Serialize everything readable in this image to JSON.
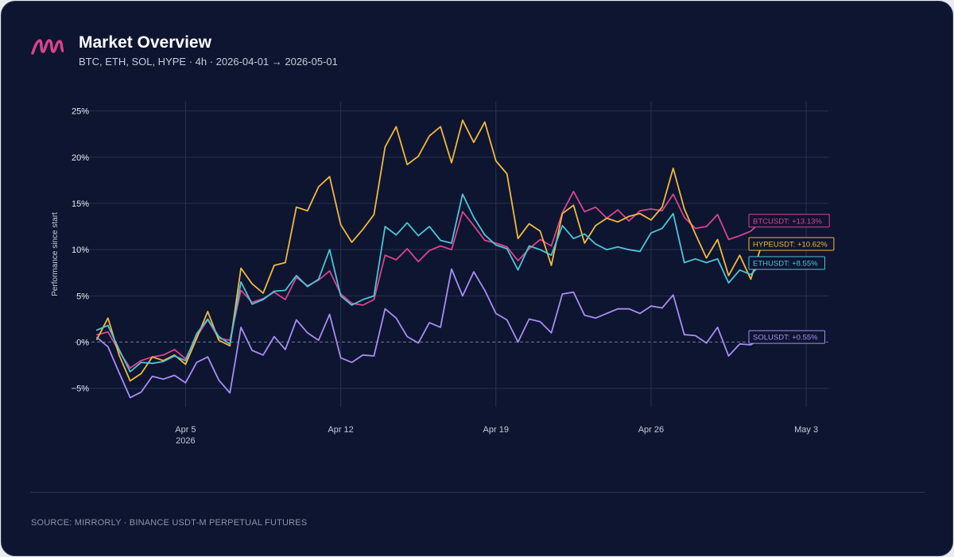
{
  "header": {
    "title": "Market Overview",
    "subtitle": "BTC, ETH, SOL, HYPE · 4h · 2026-04-01 → 2026-05-01"
  },
  "footer": {
    "source": "SOURCE: MIRRORLY · BINANCE USDT-M PERPETUAL FUTURES"
  },
  "colors": {
    "background": "#0d1530",
    "grid": "#283150",
    "brand": "#d9428f"
  },
  "chart_data": {
    "type": "line",
    "title": "",
    "xlabel": "",
    "ylabel": "Performance since start",
    "x_range": [
      "2026-03-31",
      "2026-05-04"
    ],
    "ylim": [
      -7,
      26
    ],
    "y_ticks": [
      -5,
      0,
      5,
      10,
      15,
      20,
      25
    ],
    "y_tick_labels": [
      "−5%",
      "0%",
      "5%",
      "10%",
      "15%",
      "20%",
      "25%"
    ],
    "x_ticks": [
      {
        "date": "2026-04-05",
        "label": "Apr 5",
        "sublabel": "2026"
      },
      {
        "date": "2026-04-12",
        "label": "Apr 12",
        "sublabel": ""
      },
      {
        "date": "2026-04-19",
        "label": "Apr 19",
        "sublabel": ""
      },
      {
        "date": "2026-04-26",
        "label": "Apr 26",
        "sublabel": ""
      },
      {
        "date": "2026-05-03",
        "label": "May 3",
        "sublabel": ""
      }
    ],
    "grid": true,
    "zero_line": "dashed",
    "legend": "end-labels right",
    "series": [
      {
        "name": "BTCUSDT",
        "color": "#d9448f",
        "end_label": "BTCUSDT: +13.13%",
        "points": [
          [
            "2026-04-01 00:00",
            0.8
          ],
          [
            "2026-04-01 12:00",
            1.1
          ],
          [
            "2026-04-02 00:00",
            -1.0
          ],
          [
            "2026-04-02 12:00",
            -2.8
          ],
          [
            "2026-04-03 00:00",
            -2.0
          ],
          [
            "2026-04-03 12:00",
            -1.6
          ],
          [
            "2026-04-04 00:00",
            -1.4
          ],
          [
            "2026-04-04 12:00",
            -0.8
          ],
          [
            "2026-04-05 00:00",
            -1.8
          ],
          [
            "2026-04-05 12:00",
            0.6
          ],
          [
            "2026-04-06 00:00",
            2.4
          ],
          [
            "2026-04-06 12:00",
            0.4
          ],
          [
            "2026-04-07 00:00",
            0.2
          ],
          [
            "2026-04-07 12:00",
            5.6
          ],
          [
            "2026-04-08 00:00",
            4.3
          ],
          [
            "2026-04-08 12:00",
            4.7
          ],
          [
            "2026-04-09 00:00",
            5.4
          ],
          [
            "2026-04-09 12:00",
            4.6
          ],
          [
            "2026-04-10 00:00",
            7.0
          ],
          [
            "2026-04-10 12:00",
            6.1
          ],
          [
            "2026-04-11 00:00",
            6.7
          ],
          [
            "2026-04-11 12:00",
            7.7
          ],
          [
            "2026-04-12 00:00",
            5.2
          ],
          [
            "2026-04-12 12:00",
            4.2
          ],
          [
            "2026-04-13 00:00",
            4.0
          ],
          [
            "2026-04-13 12:00",
            4.6
          ],
          [
            "2026-04-14 00:00",
            9.4
          ],
          [
            "2026-04-14 12:00",
            8.9
          ],
          [
            "2026-04-15 00:00",
            10.1
          ],
          [
            "2026-04-15 12:00",
            8.7
          ],
          [
            "2026-04-16 00:00",
            9.9
          ],
          [
            "2026-04-16 12:00",
            10.4
          ],
          [
            "2026-04-17 00:00",
            10.0
          ],
          [
            "2026-04-17 12:00",
            14.1
          ],
          [
            "2026-04-18 00:00",
            12.6
          ],
          [
            "2026-04-18 12:00",
            11.0
          ],
          [
            "2026-04-19 00:00",
            10.7
          ],
          [
            "2026-04-19 12:00",
            10.3
          ],
          [
            "2026-04-20 00:00",
            8.8
          ],
          [
            "2026-04-20 12:00",
            10.1
          ],
          [
            "2026-04-21 00:00",
            11.1
          ],
          [
            "2026-04-21 12:00",
            10.4
          ],
          [
            "2026-04-22 00:00",
            14.0
          ],
          [
            "2026-04-22 12:00",
            16.3
          ],
          [
            "2026-04-23 00:00",
            14.1
          ],
          [
            "2026-04-23 12:00",
            14.6
          ],
          [
            "2026-04-24 00:00",
            13.4
          ],
          [
            "2026-04-24 12:00",
            14.3
          ],
          [
            "2026-04-25 00:00",
            13.1
          ],
          [
            "2026-04-25 12:00",
            14.2
          ],
          [
            "2026-04-26 00:00",
            14.4
          ],
          [
            "2026-04-26 12:00",
            14.2
          ],
          [
            "2026-04-27 00:00",
            16.0
          ],
          [
            "2026-04-27 12:00",
            13.5
          ],
          [
            "2026-04-28 00:00",
            12.3
          ],
          [
            "2026-04-28 12:00",
            12.5
          ],
          [
            "2026-04-29 00:00",
            13.8
          ],
          [
            "2026-04-29 12:00",
            11.1
          ],
          [
            "2026-04-30 00:00",
            11.5
          ],
          [
            "2026-04-30 12:00",
            12.0
          ],
          [
            "2026-05-01 00:00",
            13.13
          ]
        ]
      },
      {
        "name": "HYPEUSDT",
        "color": "#f2b83d",
        "end_label": "HYPEUSDT: +10.62%",
        "points": [
          [
            "2026-04-01 00:00",
            0.3
          ],
          [
            "2026-04-01 12:00",
            2.6
          ],
          [
            "2026-04-02 00:00",
            -1.4
          ],
          [
            "2026-04-02 12:00",
            -4.2
          ],
          [
            "2026-04-03 00:00",
            -3.4
          ],
          [
            "2026-04-03 12:00",
            -1.6
          ],
          [
            "2026-04-04 00:00",
            -2.0
          ],
          [
            "2026-04-04 12:00",
            -1.4
          ],
          [
            "2026-04-05 00:00",
            -2.4
          ],
          [
            "2026-04-05 12:00",
            0.4
          ],
          [
            "2026-04-06 00:00",
            3.3
          ],
          [
            "2026-04-06 12:00",
            0.2
          ],
          [
            "2026-04-07 00:00",
            -0.4
          ],
          [
            "2026-04-07 12:00",
            8.0
          ],
          [
            "2026-04-08 00:00",
            6.3
          ],
          [
            "2026-04-08 12:00",
            5.3
          ],
          [
            "2026-04-09 00:00",
            8.3
          ],
          [
            "2026-04-09 12:00",
            8.6
          ],
          [
            "2026-04-10 00:00",
            14.6
          ],
          [
            "2026-04-10 12:00",
            14.2
          ],
          [
            "2026-04-11 00:00",
            16.8
          ],
          [
            "2026-04-11 12:00",
            17.9
          ],
          [
            "2026-04-12 00:00",
            12.7
          ],
          [
            "2026-04-12 12:00",
            10.8
          ],
          [
            "2026-04-13 00:00",
            12.2
          ],
          [
            "2026-04-13 12:00",
            13.8
          ],
          [
            "2026-04-14 00:00",
            21.1
          ],
          [
            "2026-04-14 12:00",
            23.3
          ],
          [
            "2026-04-15 00:00",
            19.2
          ],
          [
            "2026-04-15 12:00",
            20.1
          ],
          [
            "2026-04-16 00:00",
            22.3
          ],
          [
            "2026-04-16 12:00",
            23.3
          ],
          [
            "2026-04-17 00:00",
            19.4
          ],
          [
            "2026-04-17 12:00",
            24.0
          ],
          [
            "2026-04-18 00:00",
            21.6
          ],
          [
            "2026-04-18 12:00",
            23.8
          ],
          [
            "2026-04-19 00:00",
            19.6
          ],
          [
            "2026-04-19 12:00",
            18.2
          ],
          [
            "2026-04-20 00:00",
            11.2
          ],
          [
            "2026-04-20 12:00",
            12.8
          ],
          [
            "2026-04-21 00:00",
            12.0
          ],
          [
            "2026-04-21 12:00",
            8.3
          ],
          [
            "2026-04-22 00:00",
            13.9
          ],
          [
            "2026-04-22 12:00",
            14.8
          ],
          [
            "2026-04-23 00:00",
            10.7
          ],
          [
            "2026-04-23 12:00",
            12.6
          ],
          [
            "2026-04-24 00:00",
            13.4
          ],
          [
            "2026-04-24 12:00",
            13.0
          ],
          [
            "2026-04-25 00:00",
            13.6
          ],
          [
            "2026-04-25 12:00",
            13.9
          ],
          [
            "2026-04-26 00:00",
            13.2
          ],
          [
            "2026-04-26 12:00",
            14.6
          ],
          [
            "2026-04-27 00:00",
            18.8
          ],
          [
            "2026-04-27 12:00",
            14.4
          ],
          [
            "2026-04-28 00:00",
            11.7
          ],
          [
            "2026-04-28 12:00",
            9.1
          ],
          [
            "2026-04-29 00:00",
            11.1
          ],
          [
            "2026-04-29 12:00",
            7.2
          ],
          [
            "2026-04-30 00:00",
            9.4
          ],
          [
            "2026-04-30 12:00",
            6.8
          ],
          [
            "2026-05-01 00:00",
            10.62
          ]
        ]
      },
      {
        "name": "ETHUSDT",
        "color": "#4cc5d6",
        "end_label": "ETHUSDT: +8.55%",
        "points": [
          [
            "2026-04-01 00:00",
            1.3
          ],
          [
            "2026-04-01 12:00",
            1.8
          ],
          [
            "2026-04-02 00:00",
            -0.8
          ],
          [
            "2026-04-02 12:00",
            -3.2
          ],
          [
            "2026-04-03 00:00",
            -2.2
          ],
          [
            "2026-04-03 12:00",
            -2.3
          ],
          [
            "2026-04-04 00:00",
            -2.1
          ],
          [
            "2026-04-04 12:00",
            -1.5
          ],
          [
            "2026-04-05 00:00",
            -2.0
          ],
          [
            "2026-04-05 12:00",
            0.9
          ],
          [
            "2026-04-06 00:00",
            2.5
          ],
          [
            "2026-04-06 12:00",
            0.6
          ],
          [
            "2026-04-07 00:00",
            -0.2
          ],
          [
            "2026-04-07 12:00",
            6.5
          ],
          [
            "2026-04-08 00:00",
            4.1
          ],
          [
            "2026-04-08 12:00",
            4.6
          ],
          [
            "2026-04-09 00:00",
            5.5
          ],
          [
            "2026-04-09 12:00",
            5.6
          ],
          [
            "2026-04-10 00:00",
            7.2
          ],
          [
            "2026-04-10 12:00",
            6.0
          ],
          [
            "2026-04-11 00:00",
            6.8
          ],
          [
            "2026-04-11 12:00",
            10.0
          ],
          [
            "2026-04-12 00:00",
            5.0
          ],
          [
            "2026-04-12 12:00",
            4.0
          ],
          [
            "2026-04-13 00:00",
            4.6
          ],
          [
            "2026-04-13 12:00",
            5.0
          ],
          [
            "2026-04-14 00:00",
            12.5
          ],
          [
            "2026-04-14 12:00",
            11.6
          ],
          [
            "2026-04-15 00:00",
            12.9
          ],
          [
            "2026-04-15 12:00",
            11.5
          ],
          [
            "2026-04-16 00:00",
            12.5
          ],
          [
            "2026-04-16 12:00",
            11.0
          ],
          [
            "2026-04-17 00:00",
            10.7
          ],
          [
            "2026-04-17 12:00",
            16.0
          ],
          [
            "2026-04-18 00:00",
            13.5
          ],
          [
            "2026-04-18 12:00",
            11.6
          ],
          [
            "2026-04-19 00:00",
            10.5
          ],
          [
            "2026-04-19 12:00",
            10.1
          ],
          [
            "2026-04-20 00:00",
            7.8
          ],
          [
            "2026-04-20 12:00",
            10.4
          ],
          [
            "2026-04-21 00:00",
            10.0
          ],
          [
            "2026-04-21 12:00",
            9.4
          ],
          [
            "2026-04-22 00:00",
            12.6
          ],
          [
            "2026-04-22 12:00",
            11.2
          ],
          [
            "2026-04-23 00:00",
            11.7
          ],
          [
            "2026-04-23 12:00",
            10.6
          ],
          [
            "2026-04-24 00:00",
            10.0
          ],
          [
            "2026-04-24 12:00",
            10.3
          ],
          [
            "2026-04-25 00:00",
            10.0
          ],
          [
            "2026-04-25 12:00",
            9.8
          ],
          [
            "2026-04-26 00:00",
            11.8
          ],
          [
            "2026-04-26 12:00",
            12.3
          ],
          [
            "2026-04-27 00:00",
            13.9
          ],
          [
            "2026-04-27 12:00",
            8.6
          ],
          [
            "2026-04-28 00:00",
            9.0
          ],
          [
            "2026-04-28 12:00",
            8.6
          ],
          [
            "2026-04-29 00:00",
            9.0
          ],
          [
            "2026-04-29 12:00",
            6.4
          ],
          [
            "2026-04-30 00:00",
            7.8
          ],
          [
            "2026-04-30 12:00",
            7.3
          ],
          [
            "2026-05-01 00:00",
            8.55
          ]
        ]
      },
      {
        "name": "SOLUSDT",
        "color": "#a88cf4",
        "end_label": "SOLUSDT: +0.55%",
        "points": [
          [
            "2026-04-01 00:00",
            0.5
          ],
          [
            "2026-04-01 12:00",
            -0.5
          ],
          [
            "2026-04-02 00:00",
            -3.3
          ],
          [
            "2026-04-02 12:00",
            -6.0
          ],
          [
            "2026-04-03 00:00",
            -5.4
          ],
          [
            "2026-04-03 12:00",
            -3.7
          ],
          [
            "2026-04-04 00:00",
            -4.0
          ],
          [
            "2026-04-04 12:00",
            -3.6
          ],
          [
            "2026-04-05 00:00",
            -4.4
          ],
          [
            "2026-04-05 12:00",
            -2.2
          ],
          [
            "2026-04-06 00:00",
            -1.6
          ],
          [
            "2026-04-06 12:00",
            -4.1
          ],
          [
            "2026-04-07 00:00",
            -5.5
          ],
          [
            "2026-04-07 12:00",
            1.6
          ],
          [
            "2026-04-08 00:00",
            -0.9
          ],
          [
            "2026-04-08 12:00",
            -1.4
          ],
          [
            "2026-04-09 00:00",
            0.6
          ],
          [
            "2026-04-09 12:00",
            -0.8
          ],
          [
            "2026-04-10 00:00",
            2.4
          ],
          [
            "2026-04-10 12:00",
            1.0
          ],
          [
            "2026-04-11 00:00",
            0.2
          ],
          [
            "2026-04-11 12:00",
            3.0
          ],
          [
            "2026-04-12 00:00",
            -1.7
          ],
          [
            "2026-04-12 12:00",
            -2.2
          ],
          [
            "2026-04-13 00:00",
            -1.4
          ],
          [
            "2026-04-13 12:00",
            -1.5
          ],
          [
            "2026-04-14 00:00",
            3.6
          ],
          [
            "2026-04-14 12:00",
            2.6
          ],
          [
            "2026-04-15 00:00",
            0.6
          ],
          [
            "2026-04-15 12:00",
            -0.1
          ],
          [
            "2026-04-16 00:00",
            2.1
          ],
          [
            "2026-04-16 12:00",
            1.6
          ],
          [
            "2026-04-17 00:00",
            7.9
          ],
          [
            "2026-04-17 12:00",
            5.0
          ],
          [
            "2026-04-18 00:00",
            7.6
          ],
          [
            "2026-04-18 12:00",
            5.6
          ],
          [
            "2026-04-19 00:00",
            3.1
          ],
          [
            "2026-04-19 12:00",
            2.4
          ],
          [
            "2026-04-20 00:00",
            0.0
          ],
          [
            "2026-04-20 12:00",
            2.5
          ],
          [
            "2026-04-21 00:00",
            2.2
          ],
          [
            "2026-04-21 12:00",
            1.0
          ],
          [
            "2026-04-22 00:00",
            5.2
          ],
          [
            "2026-04-22 12:00",
            5.4
          ],
          [
            "2026-04-23 00:00",
            2.9
          ],
          [
            "2026-04-23 12:00",
            2.6
          ],
          [
            "2026-04-24 00:00",
            3.1
          ],
          [
            "2026-04-24 12:00",
            3.6
          ],
          [
            "2026-04-25 00:00",
            3.6
          ],
          [
            "2026-04-25 12:00",
            3.1
          ],
          [
            "2026-04-26 00:00",
            3.9
          ],
          [
            "2026-04-26 12:00",
            3.7
          ],
          [
            "2026-04-27 00:00",
            5.1
          ],
          [
            "2026-04-27 12:00",
            0.8
          ],
          [
            "2026-04-28 00:00",
            0.7
          ],
          [
            "2026-04-28 12:00",
            -0.1
          ],
          [
            "2026-04-29 00:00",
            1.6
          ],
          [
            "2026-04-29 12:00",
            -1.5
          ],
          [
            "2026-04-30 00:00",
            -0.2
          ],
          [
            "2026-04-30 12:00",
            -0.3
          ],
          [
            "2026-05-01 00:00",
            0.55
          ]
        ]
      }
    ]
  }
}
